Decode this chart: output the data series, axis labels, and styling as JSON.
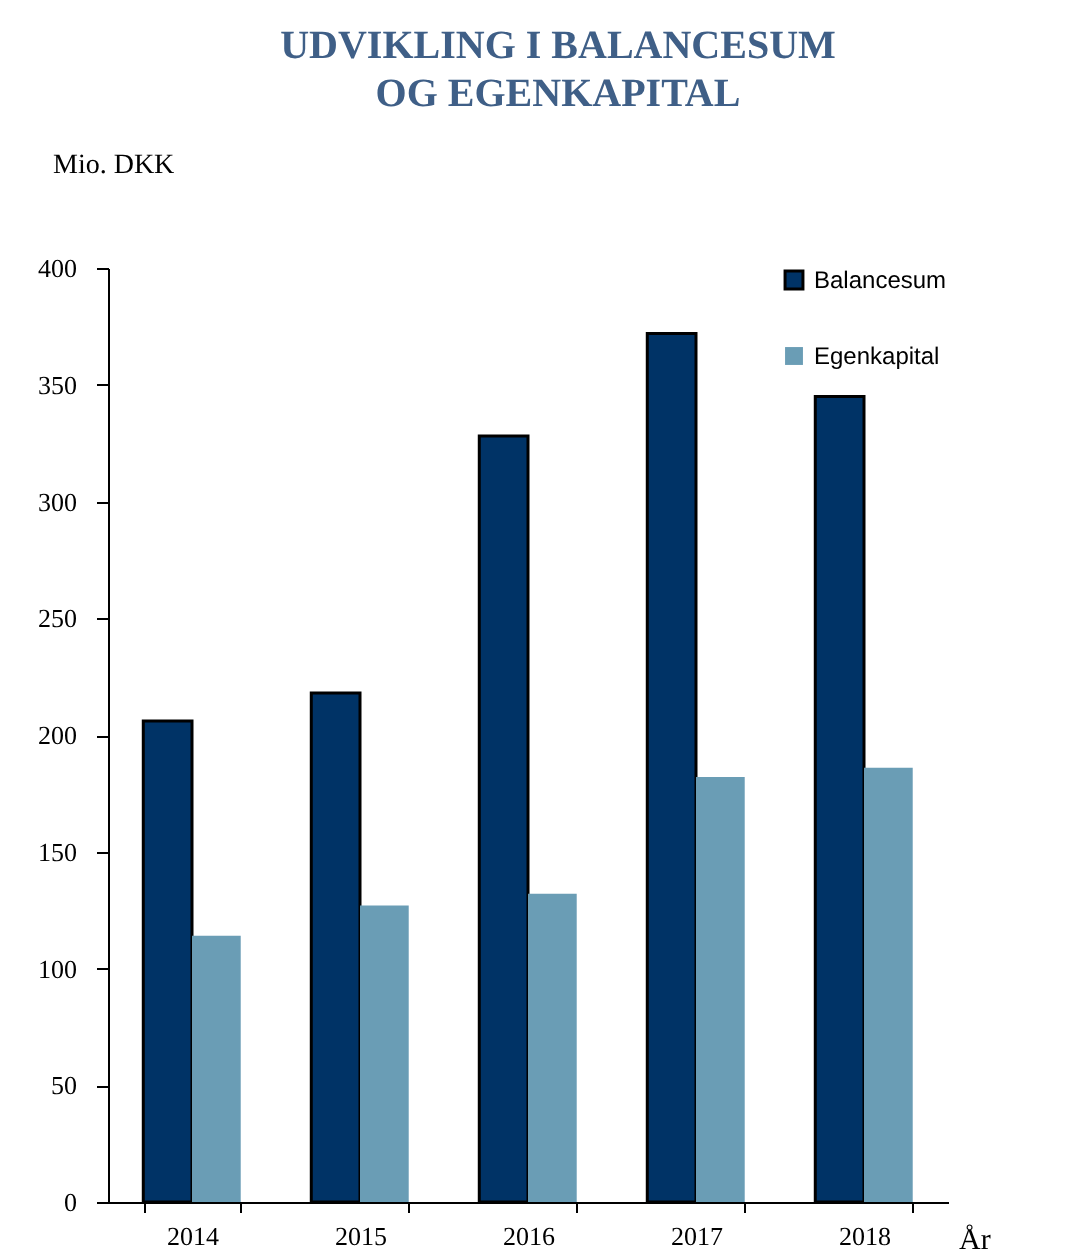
{
  "chart_data": {
    "type": "bar",
    "title": "UDVIKLING I BALANCESUM\nOG EGENKAPITAL",
    "ylabel": "Mio. DKK",
    "xlabel": "År",
    "categories": [
      "2014",
      "2015",
      "2016",
      "2017",
      "2018"
    ],
    "series": [
      {
        "name": "Balancesum",
        "color": "#003366",
        "values": [
          206,
          218,
          328,
          372,
          345
        ]
      },
      {
        "name": "Egenkapital",
        "color": "#6a9db5",
        "values": [
          114,
          127,
          132,
          182,
          186
        ]
      }
    ],
    "ylim": [
      0,
      400
    ],
    "yticks": [
      0,
      50,
      100,
      150,
      200,
      250,
      300,
      350,
      400
    ],
    "grid": false,
    "legend": "top right"
  }
}
